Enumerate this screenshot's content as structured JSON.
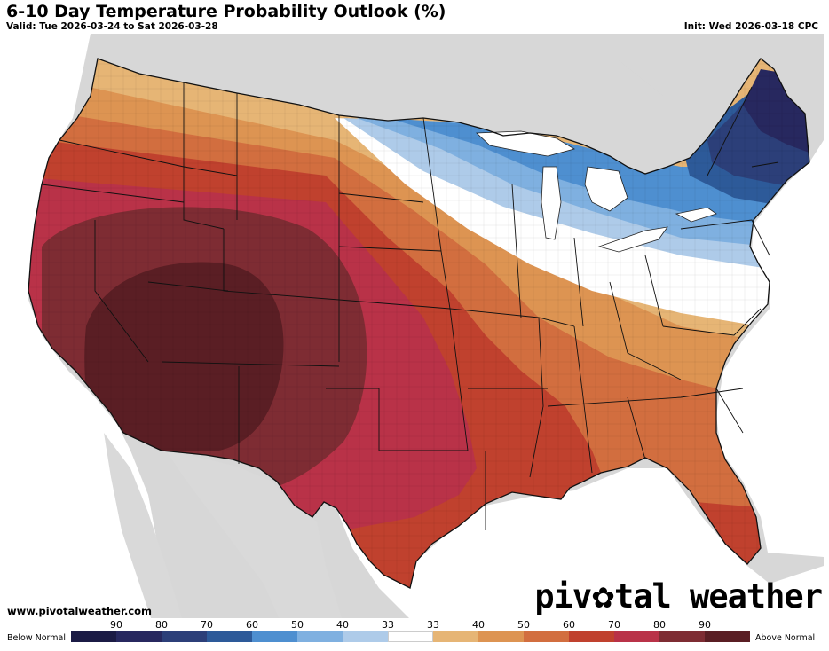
{
  "header": {
    "title": "6-10 Day Temperature Probability Outlook (%)",
    "valid": "Valid: Tue 2026-03-24 to Sat 2026-03-28",
    "init": "Init: Wed 2026-03-18 CPC"
  },
  "footer": {
    "website": "www.pivotalweather.com",
    "brand_left": "piv",
    "brand_right": "tal weather"
  },
  "legend": {
    "below_label": "Below Normal",
    "above_label": "Above Normal",
    "ticks": [
      "90",
      "80",
      "70",
      "60",
      "50",
      "40",
      "33",
      "33",
      "40",
      "50",
      "60",
      "70",
      "80",
      "90"
    ],
    "colors": [
      "#1b1b45",
      "#27285f",
      "#2c3f79",
      "#2d5a99",
      "#4e8fd0",
      "#7fb0e0",
      "#aecbe9",
      "#ffffff",
      "#e6b575",
      "#dd9452",
      "#d26e3f",
      "#c0412e",
      "#b93248",
      "#7e2c33",
      "#5a1e24"
    ]
  },
  "map": {
    "colors": {
      "water": "#ffffff",
      "land_outside": "#d7d7d7",
      "above_40": "#e6b575",
      "above_50": "#dd9452",
      "above_60": "#d26e3f",
      "above_70": "#c0412e",
      "above_80": "#b93248",
      "above_90": "#7e2c33",
      "above_90_core": "#5a1e24",
      "near_normal": "#ffffff",
      "below_40": "#aecbe9",
      "below_50": "#7fb0e0",
      "below_60": "#4e8fd0",
      "below_70": "#2d5a99",
      "below_80": "#2c3f79",
      "below_90": "#27285f"
    }
  }
}
